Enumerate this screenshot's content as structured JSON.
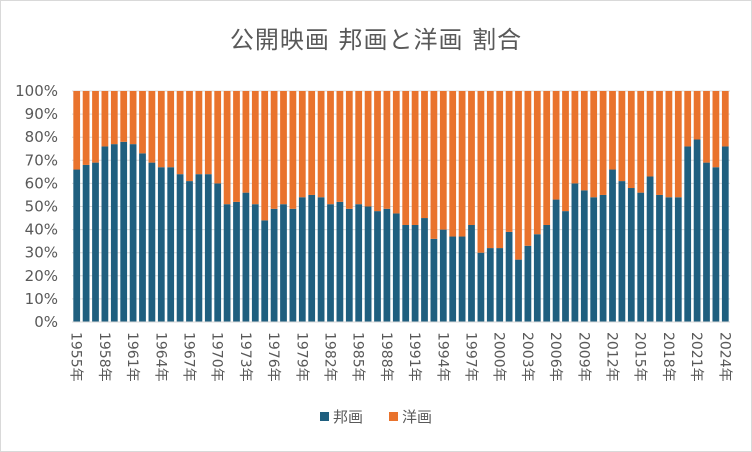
{
  "colors": {
    "houga": "#1f5f7f",
    "youga": "#e9732d",
    "grid": "#d9d9d9",
    "text": "#595959"
  },
  "chart_data": {
    "type": "bar",
    "stacked": true,
    "title": "公開映画 邦画と洋画 割合",
    "categories": [
      "1955年",
      "1956年",
      "1957年",
      "1958年",
      "1959年",
      "1960年",
      "1961年",
      "1962年",
      "1963年",
      "1964年",
      "1965年",
      "1966年",
      "1967年",
      "1968年",
      "1969年",
      "1970年",
      "1971年",
      "1972年",
      "1973年",
      "1974年",
      "1975年",
      "1976年",
      "1977年",
      "1978年",
      "1979年",
      "1980年",
      "1981年",
      "1982年",
      "1983年",
      "1984年",
      "1985年",
      "1986年",
      "1987年",
      "1988年",
      "1989年",
      "1990年",
      "1991年",
      "1992年",
      "1993年",
      "1994年",
      "1995年",
      "1996年",
      "1997年",
      "1998年",
      "1999年",
      "2000年",
      "2001年",
      "2002年",
      "2003年",
      "2004年",
      "2005年",
      "2006年",
      "2007年",
      "2008年",
      "2009年",
      "2010年",
      "2011年",
      "2012年",
      "2013年",
      "2014年",
      "2015年",
      "2016年",
      "2017年",
      "2018年",
      "2019年",
      "2020年",
      "2021年",
      "2022年",
      "2023年",
      "2024年"
    ],
    "tick_labels": [
      "1955年",
      "1958年",
      "1961年",
      "1964年",
      "1967年",
      "1970年",
      "1973年",
      "1976年",
      "1979年",
      "1982年",
      "1985年",
      "1988年",
      "1991年",
      "1994年",
      "1997年",
      "2000年",
      "2003年",
      "2006年",
      "2009年",
      "2012年",
      "2015年",
      "2018年",
      "2021年",
      "2024年"
    ],
    "series": [
      {
        "name": "邦画",
        "values": [
          66,
          68,
          69,
          76,
          77,
          78,
          77,
          73,
          69,
          67,
          67,
          64,
          61,
          64,
          64,
          60,
          51,
          52,
          56,
          51,
          44,
          49,
          51,
          49,
          54,
          55,
          54,
          51,
          52,
          49,
          51,
          50,
          48,
          49,
          47,
          42,
          42,
          45,
          36,
          40,
          37,
          37,
          42,
          30,
          32,
          32,
          39,
          27,
          33,
          38,
          42,
          53,
          48,
          60,
          57,
          54,
          55,
          66,
          61,
          58,
          56,
          63,
          55,
          54,
          54,
          76,
          79,
          69,
          67,
          76
        ]
      },
      {
        "name": "洋画",
        "values": [
          34,
          32,
          31,
          24,
          23,
          22,
          23,
          27,
          31,
          33,
          33,
          36,
          39,
          36,
          36,
          40,
          49,
          48,
          44,
          49,
          56,
          51,
          49,
          51,
          46,
          45,
          46,
          49,
          48,
          51,
          49,
          50,
          52,
          51,
          53,
          58,
          58,
          55,
          64,
          60,
          63,
          63,
          58,
          70,
          68,
          68,
          61,
          73,
          67,
          62,
          58,
          47,
          52,
          40,
          43,
          46,
          45,
          34,
          39,
          42,
          44,
          37,
          45,
          46,
          46,
          24,
          21,
          31,
          33,
          24
        ]
      }
    ],
    "ylim": [
      0,
      100
    ],
    "yticks": [
      "0%",
      "10%",
      "20%",
      "30%",
      "40%",
      "50%",
      "60%",
      "70%",
      "80%",
      "90%",
      "100%"
    ],
    "grid": true,
    "legend_position": "bottom"
  }
}
